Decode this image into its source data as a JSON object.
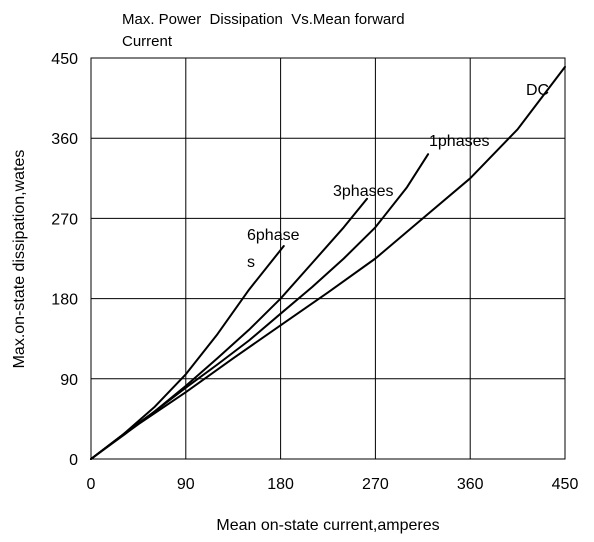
{
  "chart_data": {
    "type": "line",
    "title_lines": [
      "Max. Power  Dissipation  Vs.Mean forward",
      "Current"
    ],
    "xlabel": "Mean on-state current,amperes",
    "ylabel": "Max.on-state dissipation,wates",
    "xlim": [
      0,
      450
    ],
    "ylim": [
      0,
      450
    ],
    "xticks": [
      0,
      90,
      180,
      270,
      360,
      450
    ],
    "yticks": [
      0,
      90,
      180,
      270,
      360,
      450
    ],
    "xtick_labels": [
      "0",
      "90",
      "180",
      "270",
      "360",
      "450"
    ],
    "ytick_labels": [
      "0",
      "90",
      "180",
      "270",
      "360",
      "450"
    ],
    "grid": true,
    "line_color": "#000000",
    "series": [
      {
        "label_lines": [
          "6phase",
          "s"
        ],
        "x": [
          0,
          30,
          60,
          90,
          120,
          150,
          183
        ],
        "y": [
          0,
          27,
          58,
          95,
          140,
          190,
          239
        ]
      },
      {
        "label_lines": [
          "3phases"
        ],
        "x": [
          0,
          30,
          60,
          90,
          120,
          150,
          180,
          210,
          240,
          262
        ],
        "y": [
          0,
          27,
          53,
          82,
          113,
          145,
          180,
          220,
          260,
          292
        ]
      },
      {
        "label_lines": [
          "1phases"
        ],
        "x": [
          0,
          30,
          60,
          90,
          120,
          150,
          180,
          210,
          240,
          270,
          300,
          320
        ],
        "y": [
          0,
          27,
          53,
          80,
          106,
          133,
          163,
          193,
          225,
          260,
          305,
          342
        ]
      },
      {
        "label_lines": [
          "DC"
        ],
        "x": [
          0,
          45,
          90,
          135,
          180,
          225,
          270,
          315,
          360,
          405,
          450
        ],
        "y": [
          0,
          39,
          75,
          113,
          150,
          187,
          225,
          270,
          315,
          370,
          440
        ]
      }
    ]
  }
}
